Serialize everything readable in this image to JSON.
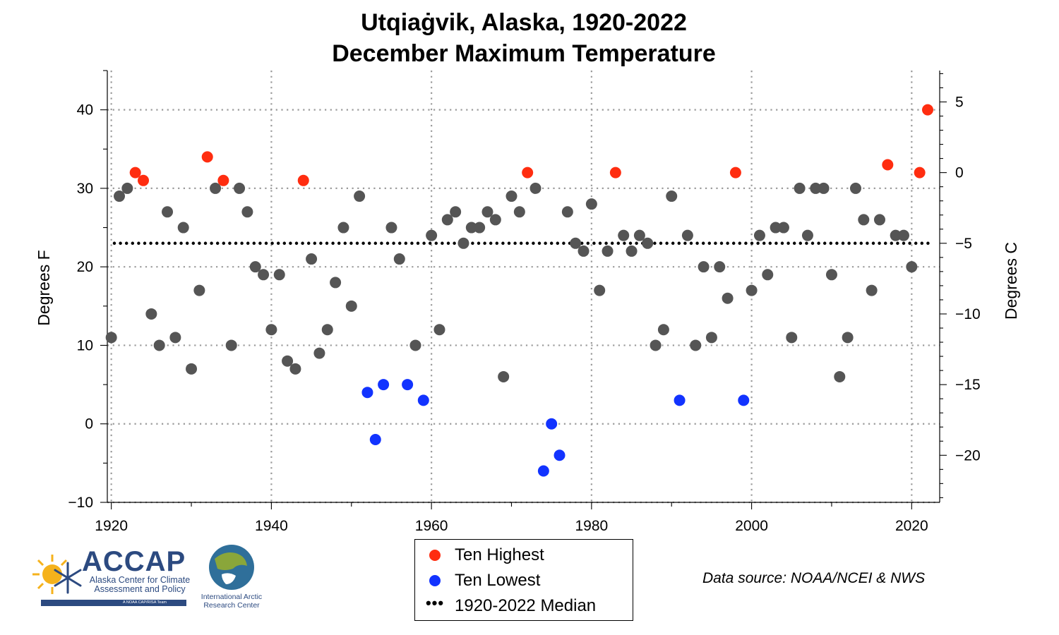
{
  "chart_data": {
    "type": "scatter",
    "title": [
      "Utqiaġvik, Alaska, 1920-2022",
      "December Maximum Temperature"
    ],
    "ylabel": "Degrees F",
    "ylabel_right": "Degrees C",
    "xlim": [
      1919.5,
      2023.5
    ],
    "ylim": [
      -10,
      45
    ],
    "ylim_right": [
      -23.33,
      7.22
    ],
    "x_ticks": [
      1920,
      1940,
      1960,
      1980,
      2000,
      2020
    ],
    "y_ticks": [
      -10,
      0,
      10,
      20,
      30,
      40
    ],
    "y_ticks_right": [
      -20,
      -15,
      -10,
      -5,
      0,
      5
    ],
    "grid": true,
    "median": 23,
    "colors": {
      "normal": "#555555",
      "high": "#ff2d10",
      "low": "#1233ff"
    },
    "x": [
      1920,
      1921,
      1922,
      1923,
      1924,
      1925,
      1926,
      1927,
      1928,
      1929,
      1930,
      1931,
      1932,
      1933,
      1934,
      1935,
      1936,
      1937,
      1938,
      1939,
      1940,
      1941,
      1942,
      1943,
      1944,
      1945,
      1946,
      1947,
      1948,
      1949,
      1950,
      1951,
      1952,
      1953,
      1954,
      1955,
      1956,
      1957,
      1958,
      1959,
      1960,
      1961,
      1962,
      1963,
      1964,
      1965,
      1966,
      1967,
      1968,
      1969,
      1970,
      1971,
      1972,
      1973,
      1974,
      1975,
      1976,
      1977,
      1978,
      1979,
      1980,
      1981,
      1982,
      1983,
      1984,
      1985,
      1986,
      1987,
      1988,
      1989,
      1990,
      1991,
      1992,
      1993,
      1994,
      1995,
      1996,
      1997,
      1998,
      1999,
      2000,
      2001,
      2002,
      2003,
      2004,
      2005,
      2006,
      2007,
      2008,
      2009,
      2010,
      2011,
      2012,
      2013,
      2014,
      2015,
      2016,
      2017,
      2018,
      2019,
      2020,
      2021,
      2022
    ],
    "y": [
      11,
      29,
      30,
      32,
      31,
      14,
      10,
      27,
      11,
      25,
      7,
      17,
      34,
      30,
      31,
      10,
      30,
      27,
      20,
      19,
      12,
      19,
      8,
      7,
      31,
      21,
      9,
      12,
      18,
      25,
      15,
      29,
      4,
      -2,
      5,
      25,
      21,
      5,
      10,
      3,
      24,
      12,
      26,
      27,
      23,
      25,
      25,
      27,
      26,
      6,
      29,
      27,
      32,
      30,
      -6,
      0,
      -4,
      27,
      23,
      22,
      28,
      17,
      22,
      32,
      24,
      22,
      24,
      23,
      10,
      12,
      29,
      3,
      24,
      10,
      20,
      11,
      20,
      16,
      32,
      3,
      17,
      24,
      19,
      25,
      25,
      11,
      30,
      24,
      30,
      30,
      19,
      6,
      11,
      30,
      26,
      17,
      26,
      33,
      24,
      24,
      20,
      32,
      40
    ],
    "category": [
      "normal",
      "normal",
      "normal",
      "high",
      "high",
      "normal",
      "normal",
      "normal",
      "normal",
      "normal",
      "normal",
      "normal",
      "high",
      "normal",
      "high",
      "normal",
      "normal",
      "normal",
      "normal",
      "normal",
      "normal",
      "normal",
      "normal",
      "normal",
      "high",
      "normal",
      "normal",
      "normal",
      "normal",
      "normal",
      "normal",
      "normal",
      "low",
      "low",
      "low",
      "normal",
      "normal",
      "low",
      "normal",
      "low",
      "normal",
      "normal",
      "normal",
      "normal",
      "normal",
      "normal",
      "normal",
      "normal",
      "normal",
      "normal",
      "normal",
      "normal",
      "high",
      "normal",
      "low",
      "low",
      "low",
      "normal",
      "normal",
      "normal",
      "normal",
      "normal",
      "normal",
      "high",
      "normal",
      "normal",
      "normal",
      "normal",
      "normal",
      "normal",
      "normal",
      "low",
      "normal",
      "normal",
      "normal",
      "normal",
      "normal",
      "normal",
      "high",
      "low",
      "normal",
      "normal",
      "normal",
      "normal",
      "normal",
      "normal",
      "normal",
      "normal",
      "normal",
      "normal",
      "normal",
      "normal",
      "normal",
      "normal",
      "normal",
      "normal",
      "normal",
      "high",
      "normal",
      "normal",
      "normal",
      "high",
      "high"
    ]
  },
  "legend": [
    {
      "label": "Ten Highest",
      "marker": "dot",
      "color": "#ff2d10"
    },
    {
      "label": "Ten Lowest",
      "marker": "dot",
      "color": "#1233ff"
    },
    {
      "label": "1920-2022 Median",
      "marker": "dotted-line",
      "color": "#000000"
    }
  ],
  "source": "Data source: NOAA/NCEI & NWS",
  "logos": {
    "accap": {
      "name": "ACCAP",
      "subtitle": "Alaska Center for Climate Assessment and Policy",
      "tagline": "A NOAA CAP/RISA Team"
    },
    "iarc": {
      "name": "International Arctic Research Center"
    }
  }
}
